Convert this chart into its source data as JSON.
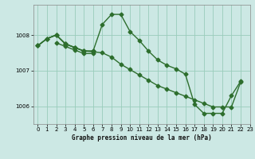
{
  "title": "Graphe pression niveau de la mer (hPa)",
  "bg_color": "#cce8e4",
  "grid_color": "#99ccbb",
  "line_color": "#2d6e2d",
  "xlim": [
    -0.5,
    23
  ],
  "ylim": [
    1005.5,
    1008.85
  ],
  "yticks": [
    1006,
    1007,
    1008
  ],
  "xticks": [
    0,
    1,
    2,
    3,
    4,
    5,
    6,
    7,
    8,
    9,
    10,
    11,
    12,
    13,
    14,
    15,
    16,
    17,
    18,
    19,
    20,
    21,
    22,
    23
  ],
  "line1_x": [
    0,
    1,
    2,
    3,
    4,
    5,
    6,
    7,
    8,
    9,
    10,
    11,
    12,
    13,
    14,
    15,
    16,
    17,
    18,
    19,
    20,
    21,
    22
  ],
  "line1_y": [
    1007.7,
    1007.9,
    1008.0,
    1007.75,
    1007.65,
    1007.55,
    1007.55,
    1008.3,
    1008.58,
    1008.58,
    1008.1,
    1007.85,
    1007.55,
    1007.3,
    1007.15,
    1007.05,
    1006.9,
    1006.05,
    1005.8,
    1005.8,
    1005.8,
    1006.3,
    1006.7
  ],
  "line2_x": [
    0,
    1,
    2,
    3,
    4,
    5,
    6,
    7,
    8,
    9,
    10,
    11,
    12,
    13,
    14,
    15,
    16,
    17,
    18,
    19,
    20,
    21,
    22
  ],
  "line2_y": [
    1007.7,
    1007.9,
    1008.0,
    1007.75,
    1007.65,
    1007.55,
    1007.53,
    1007.5,
    1007.38,
    1007.18,
    1007.03,
    1006.88,
    1006.73,
    1006.58,
    1006.48,
    1006.38,
    1006.28,
    1006.18,
    1006.08,
    1005.98,
    1005.98,
    1005.98,
    1006.68
  ],
  "line3_x": [
    0,
    1,
    2,
    3,
    4,
    5,
    6
  ],
  "line3_y": [
    1007.7,
    1007.9,
    1008.0,
    1007.75,
    1007.65,
    1007.55,
    1007.55
  ],
  "line4_x": [
    2,
    3,
    4,
    5,
    6
  ],
  "line4_y": [
    1007.78,
    1007.68,
    1007.58,
    1007.48,
    1007.48
  ]
}
